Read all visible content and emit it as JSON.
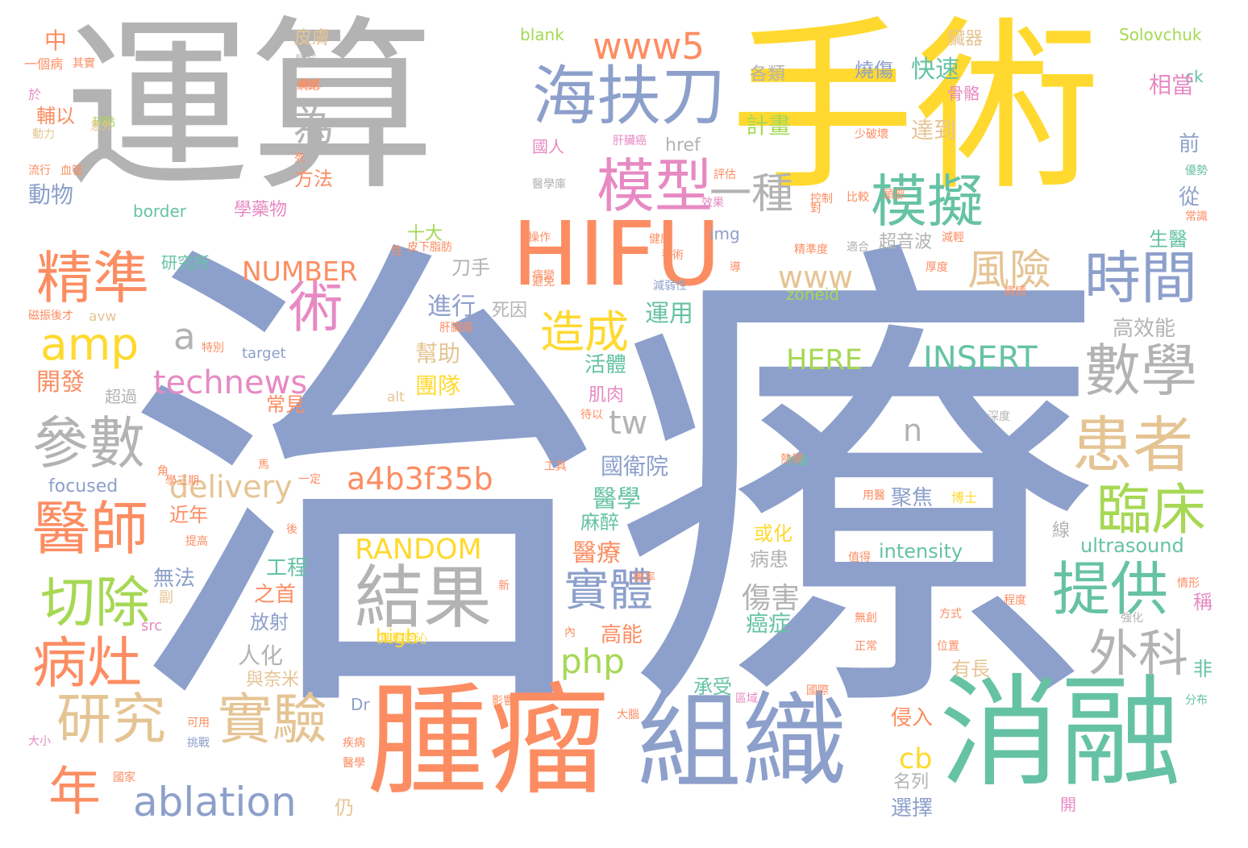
{
  "palette": {
    "blue": "#8da0cb",
    "gray": "#b3b3b3",
    "yellow": "#ffd92f",
    "orange": "#fc8d62",
    "green": "#66c2a5",
    "tan": "#e5c494",
    "pink": "#e78ac3",
    "lime": "#a6d854"
  },
  "words": [
    {
      "text": "治療",
      "color": "blue"
    },
    {
      "text": "運算",
      "color": "gray"
    },
    {
      "text": "手術",
      "color": "yellow"
    },
    {
      "text": "HIFU",
      "color": "orange"
    },
    {
      "text": "腫瘤",
      "color": "orange"
    },
    {
      "text": "組織",
      "color": "blue"
    },
    {
      "text": "消融",
      "color": "green"
    },
    {
      "text": "海扶刀",
      "color": "blue"
    },
    {
      "text": "模型",
      "color": "pink"
    },
    {
      "text": "模擬",
      "color": "green"
    },
    {
      "text": "精準",
      "color": "orange"
    },
    {
      "text": "時間",
      "color": "blue"
    },
    {
      "text": "數學",
      "color": "gray"
    },
    {
      "text": "患者",
      "color": "tan"
    },
    {
      "text": "臨床",
      "color": "lime"
    },
    {
      "text": "提供",
      "color": "green"
    },
    {
      "text": "外科",
      "color": "gray"
    },
    {
      "text": "結果",
      "color": "gray"
    },
    {
      "text": "參數",
      "color": "gray"
    },
    {
      "text": "醫師",
      "color": "orange"
    },
    {
      "text": "切除",
      "color": "lime"
    },
    {
      "text": "病灶",
      "color": "orange"
    },
    {
      "text": "研究",
      "color": "tan"
    },
    {
      "text": "實驗",
      "color": "tan"
    },
    {
      "text": "年",
      "color": "orange"
    },
    {
      "text": "ablation",
      "color": "blue"
    },
    {
      "text": "amp",
      "color": "yellow"
    },
    {
      "text": "術",
      "color": "pink"
    },
    {
      "text": "造成",
      "color": "yellow"
    },
    {
      "text": "風險",
      "color": "tan"
    },
    {
      "text": "technews",
      "color": "pink"
    },
    {
      "text": "www5",
      "color": "orange"
    },
    {
      "text": "www",
      "color": "tan"
    },
    {
      "text": "a4b3f35b",
      "color": "orange"
    },
    {
      "text": "delivery",
      "color": "tan"
    },
    {
      "text": "實體",
      "color": "blue"
    },
    {
      "text": "INSERT",
      "color": "green"
    },
    {
      "text": "HERE",
      "color": "lime"
    },
    {
      "text": "RANDOM",
      "color": "yellow"
    },
    {
      "text": "NUMBER",
      "color": "orange"
    },
    {
      "text": "php",
      "color": "lime"
    },
    {
      "text": "tw",
      "color": "gray"
    },
    {
      "text": "cb",
      "color": "yellow"
    },
    {
      "text": "為",
      "color": "gray"
    },
    {
      "text": "一種",
      "color": "gray"
    },
    {
      "text": "a",
      "color": "gray"
    },
    {
      "text": "n",
      "color": "gray"
    },
    {
      "text": "Solovchuk",
      "color": "lime"
    },
    {
      "text": "blank",
      "color": "lime"
    },
    {
      "text": "href",
      "color": "gray"
    },
    {
      "text": "img",
      "color": "blue"
    },
    {
      "text": "border",
      "color": "green"
    },
    {
      "text": "zoneid",
      "color": "lime"
    },
    {
      "text": "target",
      "color": "blue"
    },
    {
      "text": "avw",
      "color": "tan"
    },
    {
      "text": "alt",
      "color": "tan"
    },
    {
      "text": "focused",
      "color": "blue"
    },
    {
      "text": "src",
      "color": "pink"
    },
    {
      "text": "high",
      "color": "yellow"
    },
    {
      "text": "Dr",
      "color": "blue"
    },
    {
      "text": "ck",
      "color": "green"
    },
    {
      "text": "intensity",
      "color": "green"
    },
    {
      "text": "ultrasound",
      "color": "green"
    },
    {
      "text": "中",
      "color": "orange"
    },
    {
      "text": "皮膚",
      "color": "tan"
    },
    {
      "text": "快速",
      "color": "green"
    },
    {
      "text": "達到",
      "color": "tan"
    },
    {
      "text": "計畫",
      "color": "lime"
    },
    {
      "text": "燒傷",
      "color": "blue"
    },
    {
      "text": "臟器",
      "color": "tan"
    },
    {
      "text": "相當",
      "color": "pink"
    },
    {
      "text": "骨骼",
      "color": "pink"
    },
    {
      "text": "前",
      "color": "blue"
    },
    {
      "text": "從",
      "color": "blue"
    },
    {
      "text": "生醫",
      "color": "green"
    },
    {
      "text": "高效能",
      "color": "gray"
    },
    {
      "text": "動物",
      "color": "blue"
    },
    {
      "text": "方法",
      "color": "orange"
    },
    {
      "text": "學藥物",
      "color": "pink"
    },
    {
      "text": "十大",
      "color": "lime"
    },
    {
      "text": "超音波",
      "color": "gray"
    },
    {
      "text": "研究所",
      "color": "green"
    },
    {
      "text": "進行",
      "color": "blue"
    },
    {
      "text": "運用",
      "color": "green"
    },
    {
      "text": "死因",
      "color": "gray"
    },
    {
      "text": "幫助",
      "color": "tan"
    },
    {
      "text": "團隊",
      "color": "yellow"
    },
    {
      "text": "活體",
      "color": "green"
    },
    {
      "text": "開發",
      "color": "orange"
    },
    {
      "text": "常見",
      "color": "orange"
    },
    {
      "text": "超過",
      "color": "gray"
    },
    {
      "text": "肌肉",
      "color": "pink"
    },
    {
      "text": "國衛院",
      "color": "blue"
    },
    {
      "text": "醫學",
      "color": "green"
    },
    {
      "text": "麻醉",
      "color": "green"
    },
    {
      "text": "近年",
      "color": "orange"
    },
    {
      "text": "醫療",
      "color": "orange"
    },
    {
      "text": "或化",
      "color": "yellow"
    },
    {
      "text": "病患",
      "color": "gray"
    },
    {
      "text": "無法",
      "color": "blue"
    },
    {
      "text": "工程",
      "color": "green"
    },
    {
      "text": "之首",
      "color": "orange"
    },
    {
      "text": "傷害",
      "color": "gray"
    },
    {
      "text": "癌症",
      "color": "green"
    },
    {
      "text": "高能",
      "color": "orange"
    },
    {
      "text": "放射",
      "color": "blue"
    },
    {
      "text": "人化",
      "color": "gray"
    },
    {
      "text": "與奈米",
      "color": "tan"
    },
    {
      "text": "承受",
      "color": "green"
    },
    {
      "text": "有長",
      "color": "tan"
    },
    {
      "text": "侵入",
      "color": "orange"
    },
    {
      "text": "名列",
      "color": "gray"
    },
    {
      "text": "選擇",
      "color": "blue"
    },
    {
      "text": "仍",
      "color": "tan"
    },
    {
      "text": "聚焦",
      "color": "blue"
    },
    {
      "text": "刀手",
      "color": "gray"
    },
    {
      "text": "各類",
      "color": "gray"
    },
    {
      "text": "國人",
      "color": "pink"
    },
    {
      "text": "輔以",
      "color": "orange"
    },
    {
      "text": "具馬克沁",
      "color": "yellow"
    },
    {
      "text": "非",
      "color": "green"
    },
    {
      "text": "稱",
      "color": "pink"
    },
    {
      "text": "線",
      "color": "gray"
    },
    {
      "text": "副",
      "color": "tan"
    },
    {
      "text": "開",
      "color": "pink"
    },
    {
      "text": "分布",
      "color": "green"
    },
    {
      "text": "一個病",
      "color": "orange"
    },
    {
      "text": "於",
      "color": "pink"
    },
    {
      "text": "具有",
      "color": "gray"
    },
    {
      "text": "博士",
      "color": "yellow"
    },
    {
      "text": "用醫",
      "color": "orange"
    },
    {
      "text": "肝臟癌",
      "color": "pink"
    },
    {
      "text": "肝臟癌",
      "color": "orange"
    },
    {
      "text": "大小",
      "color": "pink"
    },
    {
      "text": "國家",
      "color": "orange"
    },
    {
      "text": "磁振後才",
      "color": "orange"
    },
    {
      "text": "其實",
      "color": "orange"
    },
    {
      "text": "動力",
      "color": "tan"
    },
    {
      "text": "傳統",
      "color": "orange"
    },
    {
      "text": "缺點",
      "color": "lime"
    },
    {
      "text": "流行",
      "color": "orange"
    },
    {
      "text": "血管",
      "color": "orange"
    },
    {
      "text": "醫學庫",
      "color": "gray"
    },
    {
      "text": "評估",
      "color": "orange"
    },
    {
      "text": "效果",
      "color": "pink"
    },
    {
      "text": "健康",
      "color": "orange"
    },
    {
      "text": "操作",
      "color": "orange"
    },
    {
      "text": "皮下脂肪",
      "color": "orange"
    },
    {
      "text": "優勢",
      "color": "green"
    },
    {
      "text": "常識",
      "color": "orange"
    },
    {
      "text": "精準度",
      "color": "orange"
    },
    {
      "text": "適合",
      "color": "gray"
    },
    {
      "text": "減輕",
      "color": "orange"
    },
    {
      "text": "厚度",
      "color": "orange"
    },
    {
      "text": "深度",
      "color": "gray"
    },
    {
      "text": "熱量",
      "color": "green"
    },
    {
      "text": "頭部",
      "color": "orange"
    },
    {
      "text": "工具",
      "color": "orange"
    },
    {
      "text": "影響",
      "color": "orange"
    },
    {
      "text": "位置",
      "color": "orange"
    },
    {
      "text": "程度",
      "color": "orange"
    },
    {
      "text": "情形",
      "color": "orange"
    },
    {
      "text": "強化",
      "color": "gray"
    },
    {
      "text": "方式",
      "color": "orange"
    },
    {
      "text": "機率",
      "color": "orange"
    },
    {
      "text": "正常",
      "color": "orange"
    },
    {
      "text": "無創",
      "color": "orange"
    },
    {
      "text": "區域",
      "color": "pink"
    },
    {
      "text": "挑戰",
      "color": "blue"
    },
    {
      "text": "大腦",
      "color": "orange"
    },
    {
      "text": "可用",
      "color": "orange"
    },
    {
      "text": "疾病",
      "color": "orange"
    },
    {
      "text": "學三期",
      "color": "orange"
    },
    {
      "text": "一定",
      "color": "orange"
    },
    {
      "text": "提高",
      "color": "orange"
    },
    {
      "text": "熱學",
      "color": "orange"
    },
    {
      "text": "醫學",
      "color": "orange"
    },
    {
      "text": "國際",
      "color": "orange"
    },
    {
      "text": "待以",
      "color": "orange"
    },
    {
      "text": "病變",
      "color": "orange"
    },
    {
      "text": "減弱性",
      "color": "blue"
    },
    {
      "text": "控制",
      "color": "orange"
    },
    {
      "text": "手術",
      "color": "orange"
    },
    {
      "text": "死",
      "color": "orange"
    },
    {
      "text": "對",
      "color": "orange"
    },
    {
      "text": "少破壞",
      "color": "orange"
    },
    {
      "text": "導",
      "color": "orange"
    },
    {
      "text": "性",
      "color": "orange"
    },
    {
      "text": "特別",
      "color": "orange"
    },
    {
      "text": "後",
      "color": "orange"
    },
    {
      "text": "新",
      "color": "orange"
    },
    {
      "text": "內",
      "color": "orange"
    },
    {
      "text": "值得",
      "color": "orange"
    },
    {
      "text": "角",
      "color": "orange"
    },
    {
      "text": "馬",
      "color": "orange"
    },
    {
      "text": "網路",
      "color": "orange"
    },
    {
      "text": "比較",
      "color": "orange"
    },
    {
      "text": "意外",
      "color": "tan"
    },
    {
      "text": "避免",
      "color": "orange"
    },
    {
      "text": "病情",
      "color": "orange"
    }
  ]
}
